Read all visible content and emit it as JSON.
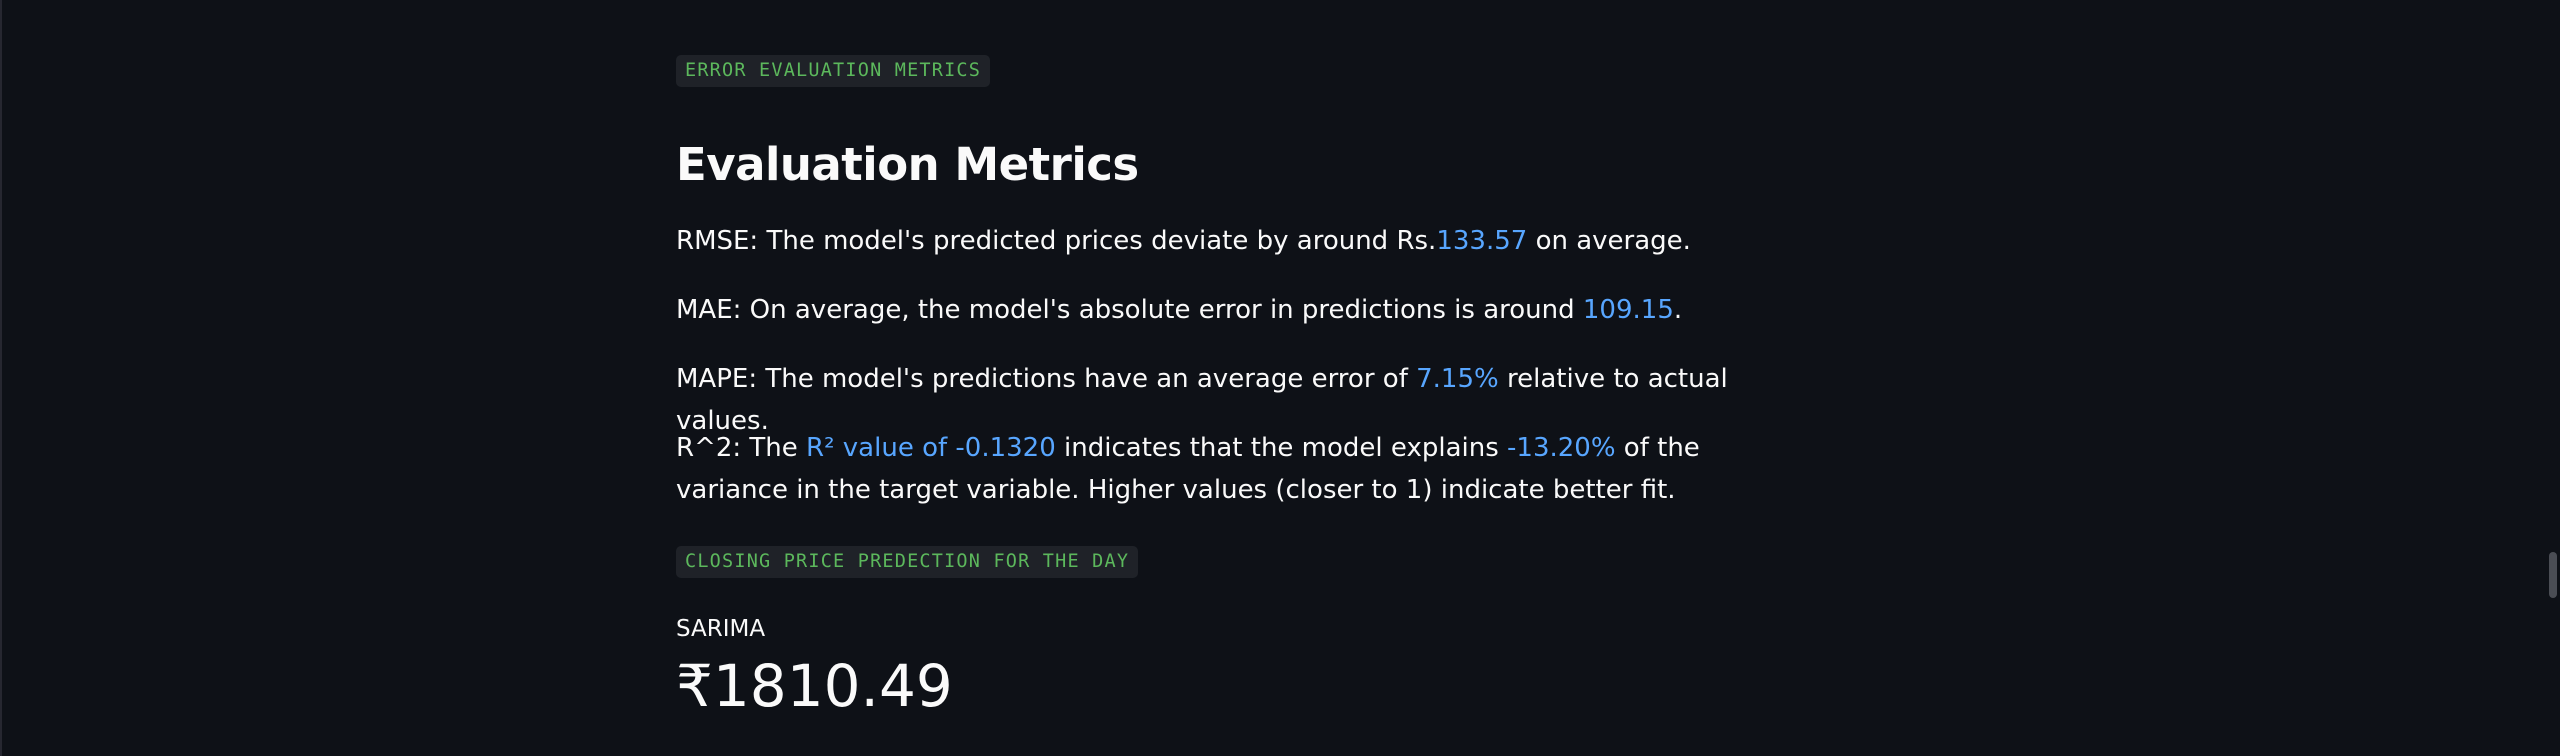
{
  "tags": {
    "error_eval": "ERROR EVALUATION METRICS",
    "closing_price": "CLOSING PRICE PREDECTION FOR THE DAY"
  },
  "section": {
    "title": "Evaluation Metrics"
  },
  "metrics": {
    "rmse": {
      "prefix": "RMSE: The model's predicted prices deviate by around Rs.",
      "value": "133.57",
      "suffix": " on average."
    },
    "mae": {
      "prefix": "MAE: On average, the model's absolute error in predictions is around ",
      "value": "109.15",
      "suffix": "."
    },
    "mape": {
      "prefix": "MAPE: The model's predictions have an average error of ",
      "value": "7.15%",
      "suffix": " relative to actual values."
    },
    "r2": {
      "prefix": "R^2: The ",
      "value": "R² value of -0.1320",
      "middle": " indicates that the model explains ",
      "value2": "-13.20%",
      "suffix": " of the variance in the target variable. Higher values (closer to 1) indicate better fit."
    }
  },
  "prediction": {
    "label": "SARIMA",
    "value": "₹1810.49"
  },
  "colors": {
    "background": "#0e1117",
    "highlight": "#58a6ff",
    "tag_text": "#5cb85c",
    "tag_bg": "#1f2228"
  }
}
